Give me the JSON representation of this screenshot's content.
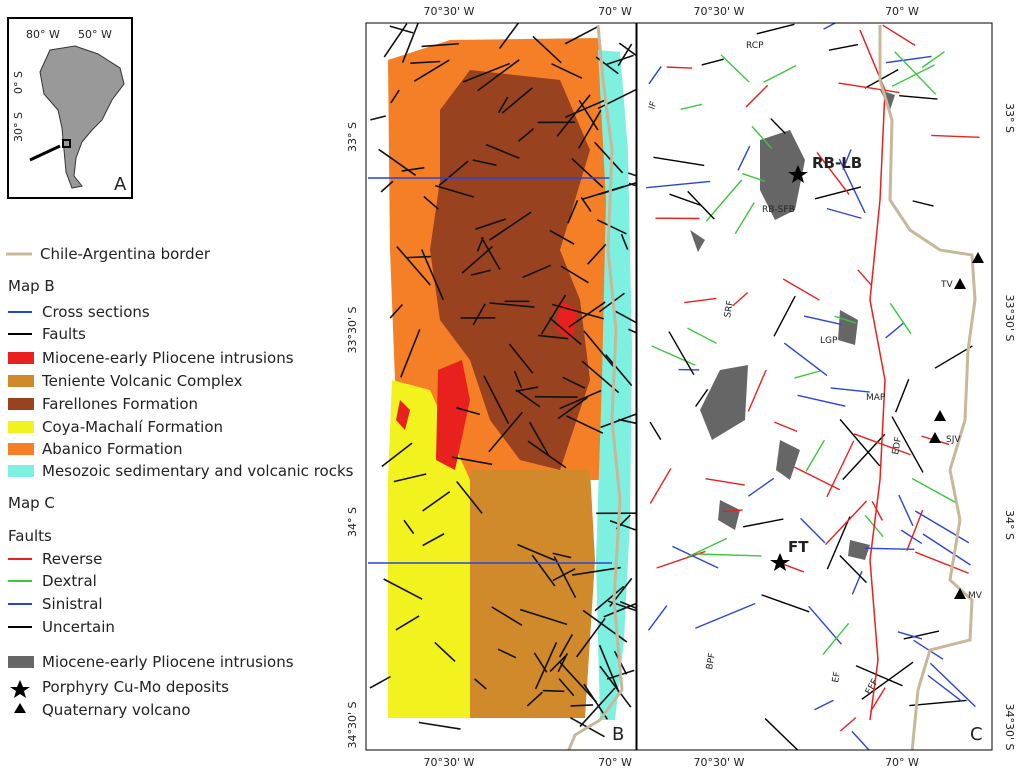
{
  "inset": {
    "lon_labels": [
      "80° W",
      "50° W"
    ],
    "lat_labels": [
      "0° S",
      "30° S"
    ],
    "panel": "A"
  },
  "legend": {
    "border": "Chile-Argentina border",
    "map_b": {
      "title": "Map B",
      "items": [
        "Cross sections",
        "Faults",
        "Miocene-early Pliocene intrusions",
        "Teniente Volcanic Complex",
        "Farellones Formation",
        "Coya-Machalí Formation",
        "Abanico Formation",
        "Mesozoic sedimentary and volcanic rocks"
      ]
    },
    "map_c": {
      "title": "Map C",
      "faults_title": "Faults",
      "faults": [
        "Reverse",
        "Dextral",
        "Sinistral",
        "Uncertain"
      ],
      "items": [
        "Miocene-early Pliocene intrusions",
        "Porphyry Cu-Mo deposits",
        "Quaternary volcano"
      ]
    }
  },
  "map_b": {
    "panel": "B",
    "top_ticks": [
      "70°30' W",
      "70° W"
    ],
    "bottom_ticks": [
      "70°30' W",
      "70° W"
    ],
    "left_ticks": [
      "33° S",
      "33°30' S",
      "34° S",
      "34°30' S"
    ]
  },
  "map_c": {
    "panel": "C",
    "top_ticks": [
      "70°30' W",
      "70° W"
    ],
    "bottom_ticks": [
      "70°30' W",
      "70° W"
    ],
    "right_ticks": [
      "33° S",
      "33°30' S",
      "34° S",
      "34°30' S"
    ],
    "labels": [
      "RCP",
      "IF",
      "RB-LB",
      "RB-SFB",
      "TV",
      "SRF",
      "LGP",
      "MAP",
      "EDF",
      "SJV",
      "FT",
      "MV",
      "BPF",
      "EF",
      "EFF"
    ]
  }
}
